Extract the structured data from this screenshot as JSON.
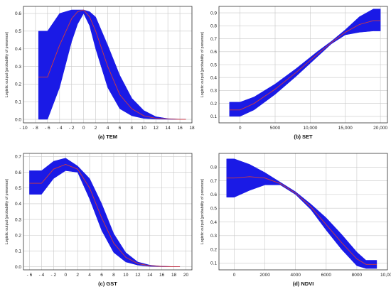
{
  "colors": {
    "band": "#1a1ae6",
    "mean_line": "#d23c3c",
    "grid": "#c8c8c8",
    "frame": "#333333"
  },
  "chart_data": [
    {
      "type": "area",
      "caption": "(a) TEM",
      "ylabel": "Logistic output (probability of presence)",
      "xlabel": "",
      "xlim": [
        -10,
        18
      ],
      "ylim": [
        -0.02,
        0.64
      ],
      "xticks": [
        -10,
        -8,
        -6,
        -4,
        -2,
        0,
        2,
        4,
        6,
        8,
        10,
        12,
        14,
        16,
        18
      ],
      "xtick_labels": [
        "- 10",
        "- 8",
        "- 6",
        "- 4",
        "- 2",
        "0",
        "2",
        "4",
        "6",
        "8",
        "10",
        "12",
        "14",
        "16",
        "18"
      ],
      "yticks": [
        0.0,
        0.1,
        0.2,
        0.3,
        0.4,
        0.5,
        0.6
      ],
      "ytick_labels": [
        "0.0",
        "0.1",
        "0.2",
        "0.3",
        "0.4",
        "0.5",
        "0.6"
      ],
      "grid": true,
      "series": [
        {
          "role": "mean",
          "x": [
            -7.5,
            -6,
            -4,
            -2,
            -1,
            0,
            1,
            2,
            4,
            6,
            8,
            10,
            12,
            14,
            16,
            17
          ],
          "y": [
            0.24,
            0.24,
            0.42,
            0.57,
            0.61,
            0.62,
            0.58,
            0.5,
            0.3,
            0.14,
            0.06,
            0.02,
            0.006,
            0.002,
            0.0,
            0.0
          ]
        },
        {
          "role": "upper",
          "x": [
            -7.5,
            -6,
            -4,
            -2,
            -1,
            0,
            1,
            2,
            4,
            6,
            8,
            10,
            12,
            14,
            16,
            17
          ],
          "y": [
            0.5,
            0.5,
            0.6,
            0.62,
            0.62,
            0.62,
            0.61,
            0.58,
            0.42,
            0.25,
            0.12,
            0.05,
            0.015,
            0.004,
            0.001,
            0.0
          ]
        },
        {
          "role": "lower",
          "x": [
            -7.5,
            -6,
            -4,
            -2,
            -1,
            0,
            1,
            2,
            4,
            6,
            8,
            10,
            12,
            14,
            16,
            17
          ],
          "y": [
            0.0,
            0.0,
            0.18,
            0.44,
            0.54,
            0.6,
            0.53,
            0.4,
            0.18,
            0.06,
            0.02,
            0.005,
            0.001,
            0.0,
            0.0,
            0.0
          ]
        }
      ]
    },
    {
      "type": "area",
      "caption": "(b) SET",
      "ylabel": "Logistic output (probability of presence)",
      "xlabel": "",
      "xlim": [
        -3000,
        21000
      ],
      "ylim": [
        0.05,
        0.95
      ],
      "xticks": [
        0,
        5000,
        10000,
        15000,
        20000
      ],
      "xtick_labels": [
        "0",
        "5000",
        "10,000",
        "15,000",
        "20,000"
      ],
      "yticks": [
        0.1,
        0.2,
        0.3,
        0.4,
        0.5,
        0.6,
        0.7,
        0.8,
        0.9
      ],
      "ytick_labels": [
        "0.1",
        "0.2",
        "0.3",
        "0.4",
        "0.5",
        "0.6",
        "0.7",
        "0.8",
        "0.9"
      ],
      "grid": true,
      "series": [
        {
          "role": "mean",
          "x": [
            -1500,
            0,
            2000,
            5000,
            8000,
            11000,
            13000,
            15000,
            17000,
            19000,
            20000
          ],
          "y": [
            0.15,
            0.15,
            0.2,
            0.31,
            0.44,
            0.58,
            0.67,
            0.75,
            0.81,
            0.84,
            0.84
          ]
        },
        {
          "role": "upper",
          "x": [
            -1500,
            0,
            2000,
            5000,
            8000,
            11000,
            13000,
            15000,
            17000,
            19000,
            20000
          ],
          "y": [
            0.21,
            0.21,
            0.25,
            0.35,
            0.47,
            0.6,
            0.68,
            0.77,
            0.87,
            0.93,
            0.93
          ]
        },
        {
          "role": "lower",
          "x": [
            -1500,
            0,
            2000,
            5000,
            8000,
            11000,
            13000,
            15000,
            17000,
            19000,
            20000
          ],
          "y": [
            0.1,
            0.1,
            0.15,
            0.27,
            0.41,
            0.56,
            0.66,
            0.73,
            0.75,
            0.76,
            0.76
          ]
        }
      ]
    },
    {
      "type": "area",
      "caption": "(c) GST",
      "ylabel": "Logistic output (probability of presence)",
      "xlabel": "",
      "xlim": [
        -7,
        21
      ],
      "ylim": [
        -0.02,
        0.72
      ],
      "xticks": [
        -6,
        -4,
        -2,
        0,
        2,
        4,
        6,
        8,
        10,
        12,
        14,
        16,
        18,
        20
      ],
      "xtick_labels": [
        "- 6",
        "- 4",
        "- 2",
        "0",
        "2",
        "4",
        "6",
        "8",
        "10",
        "12",
        "14",
        "16",
        "18",
        "20"
      ],
      "yticks": [
        0.0,
        0.1,
        0.2,
        0.3,
        0.4,
        0.5,
        0.6,
        0.7
      ],
      "ytick_labels": [
        "0.0",
        "0.1",
        "0.2",
        "0.3",
        "0.4",
        "0.5",
        "0.6",
        "0.7"
      ],
      "grid": true,
      "series": [
        {
          "role": "mean",
          "x": [
            -6,
            -4,
            -2,
            0,
            2,
            4,
            6,
            8,
            10,
            12,
            14,
            16,
            18,
            19
          ],
          "y": [
            0.53,
            0.53,
            0.62,
            0.65,
            0.62,
            0.5,
            0.31,
            0.15,
            0.06,
            0.02,
            0.006,
            0.002,
            0.0,
            0.0
          ]
        },
        {
          "role": "upper",
          "x": [
            -6,
            -4,
            -2,
            0,
            2,
            4,
            6,
            8,
            10,
            12,
            14,
            16,
            18,
            19
          ],
          "y": [
            0.61,
            0.61,
            0.67,
            0.69,
            0.64,
            0.56,
            0.4,
            0.21,
            0.09,
            0.03,
            0.01,
            0.003,
            0.001,
            0.0
          ]
        },
        {
          "role": "lower",
          "x": [
            -6,
            -4,
            -2,
            0,
            2,
            4,
            6,
            8,
            10,
            12,
            14,
            16,
            18,
            19
          ],
          "y": [
            0.46,
            0.46,
            0.56,
            0.61,
            0.6,
            0.43,
            0.23,
            0.09,
            0.03,
            0.01,
            0.002,
            0.0,
            0.0,
            0.0
          ]
        }
      ]
    },
    {
      "type": "area",
      "caption": "(d) NDVI",
      "ylabel": "Logistic output (probability of presence)",
      "xlabel": "",
      "xlim": [
        -1000,
        10000
      ],
      "ylim": [
        0.05,
        0.9
      ],
      "xticks": [
        0,
        2000,
        4000,
        6000,
        8000,
        10000
      ],
      "xtick_labels": [
        "0",
        "2000",
        "4000",
        "6000",
        "8000",
        "10,000"
      ],
      "yticks": [
        0.1,
        0.2,
        0.3,
        0.4,
        0.5,
        0.6,
        0.7,
        0.8
      ],
      "ytick_labels": [
        "0.1",
        "0.2",
        "0.3",
        "0.4",
        "0.5",
        "0.6",
        "0.7",
        "0.8"
      ],
      "grid": true,
      "series": [
        {
          "role": "mean",
          "x": [
            -500,
            0,
            1000,
            2000,
            3000,
            4000,
            5000,
            6000,
            7000,
            8000,
            8600,
            9300
          ],
          "y": [
            0.72,
            0.72,
            0.73,
            0.72,
            0.68,
            0.61,
            0.51,
            0.38,
            0.25,
            0.13,
            0.09,
            0.09
          ]
        },
        {
          "role": "upper",
          "x": [
            -500,
            0,
            1000,
            2000,
            3000,
            4000,
            5000,
            6000,
            7000,
            8000,
            8600,
            9300
          ],
          "y": [
            0.86,
            0.86,
            0.82,
            0.76,
            0.69,
            0.62,
            0.53,
            0.43,
            0.31,
            0.18,
            0.12,
            0.12
          ]
        },
        {
          "role": "lower",
          "x": [
            -500,
            0,
            1000,
            2000,
            3000,
            4000,
            5000,
            6000,
            7000,
            8000,
            8600,
            9300
          ],
          "y": [
            0.58,
            0.58,
            0.63,
            0.67,
            0.67,
            0.6,
            0.49,
            0.34,
            0.2,
            0.08,
            0.06,
            0.06
          ]
        }
      ]
    }
  ]
}
